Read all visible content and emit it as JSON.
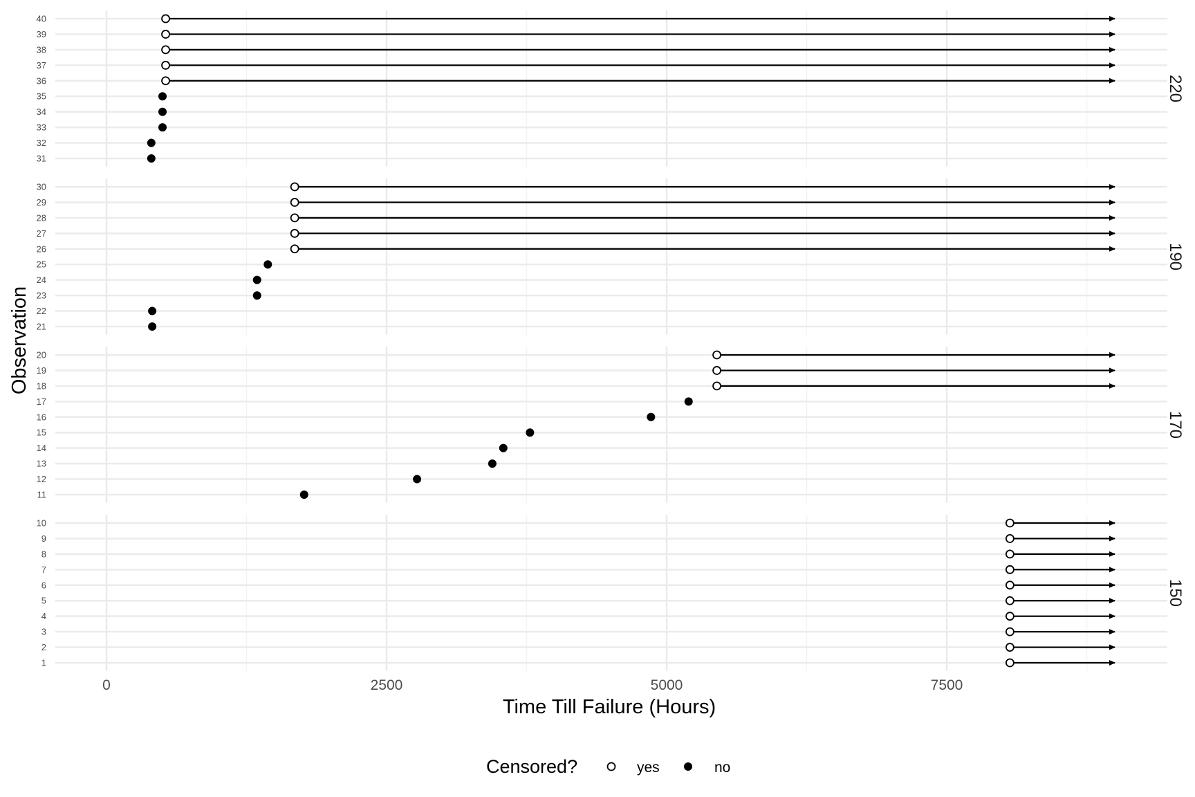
{
  "chart_data": {
    "type": "scatter",
    "subtype": "survival-censoring-plot-faceted",
    "title": "",
    "xlabel": "Time Till Failure (Hours)",
    "ylabel": "Observation",
    "xlim": [
      -220,
      9650
    ],
    "x_ticks": [
      0,
      2500,
      5000,
      7500
    ],
    "x_tick_labels": [
      "0",
      "2500",
      "5000",
      "7500"
    ],
    "arrow_end": 9000,
    "grid": true,
    "legend": {
      "position": "bottom",
      "title": "Censored?",
      "entries": [
        {
          "label": "yes",
          "marker": "open-circle"
        },
        {
          "label": "no",
          "marker": "filled-circle"
        }
      ]
    },
    "panels": [
      {
        "strip": "220",
        "observations": [
          {
            "obs": 31,
            "time": 400,
            "censored": false
          },
          {
            "obs": 32,
            "time": 400,
            "censored": false
          },
          {
            "obs": 33,
            "time": 500,
            "censored": false
          },
          {
            "obs": 34,
            "time": 500,
            "censored": false
          },
          {
            "obs": 35,
            "time": 500,
            "censored": false
          },
          {
            "obs": 36,
            "time": 528,
            "censored": true
          },
          {
            "obs": 37,
            "time": 528,
            "censored": true
          },
          {
            "obs": 38,
            "time": 528,
            "censored": true
          },
          {
            "obs": 39,
            "time": 528,
            "censored": true
          },
          {
            "obs": 40,
            "time": 528,
            "censored": true
          }
        ]
      },
      {
        "strip": "190",
        "observations": [
          {
            "obs": 21,
            "time": 408,
            "censored": false
          },
          {
            "obs": 22,
            "time": 408,
            "censored": false
          },
          {
            "obs": 23,
            "time": 1344,
            "censored": false
          },
          {
            "obs": 24,
            "time": 1344,
            "censored": false
          },
          {
            "obs": 25,
            "time": 1440,
            "censored": false
          },
          {
            "obs": 26,
            "time": 1680,
            "censored": true
          },
          {
            "obs": 27,
            "time": 1680,
            "censored": true
          },
          {
            "obs": 28,
            "time": 1680,
            "censored": true
          },
          {
            "obs": 29,
            "time": 1680,
            "censored": true
          },
          {
            "obs": 30,
            "time": 1680,
            "censored": true
          }
        ]
      },
      {
        "strip": "170",
        "observations": [
          {
            "obs": 11,
            "time": 1764,
            "censored": false
          },
          {
            "obs": 12,
            "time": 2772,
            "censored": false
          },
          {
            "obs": 13,
            "time": 3444,
            "censored": false
          },
          {
            "obs": 14,
            "time": 3542,
            "censored": false
          },
          {
            "obs": 15,
            "time": 3780,
            "censored": false
          },
          {
            "obs": 16,
            "time": 4860,
            "censored": false
          },
          {
            "obs": 17,
            "time": 5196,
            "censored": false
          },
          {
            "obs": 18,
            "time": 5448,
            "censored": true
          },
          {
            "obs": 19,
            "time": 5448,
            "censored": true
          },
          {
            "obs": 20,
            "time": 5448,
            "censored": true
          }
        ]
      },
      {
        "strip": "150",
        "observations": [
          {
            "obs": 1,
            "time": 8064,
            "censored": true
          },
          {
            "obs": 2,
            "time": 8064,
            "censored": true
          },
          {
            "obs": 3,
            "time": 8064,
            "censored": true
          },
          {
            "obs": 4,
            "time": 8064,
            "censored": true
          },
          {
            "obs": 5,
            "time": 8064,
            "censored": true
          },
          {
            "obs": 6,
            "time": 8064,
            "censored": true
          },
          {
            "obs": 7,
            "time": 8064,
            "censored": true
          },
          {
            "obs": 8,
            "time": 8064,
            "censored": true
          },
          {
            "obs": 9,
            "time": 8064,
            "censored": true
          },
          {
            "obs": 10,
            "time": 8064,
            "censored": true
          }
        ]
      }
    ]
  },
  "colors": {
    "grid_major": "#ebebeb",
    "grid_minor": "#f3f3f3",
    "point": "#000000",
    "open_point_fill": "#ffffff",
    "tick_text": "#4d4d4d"
  }
}
